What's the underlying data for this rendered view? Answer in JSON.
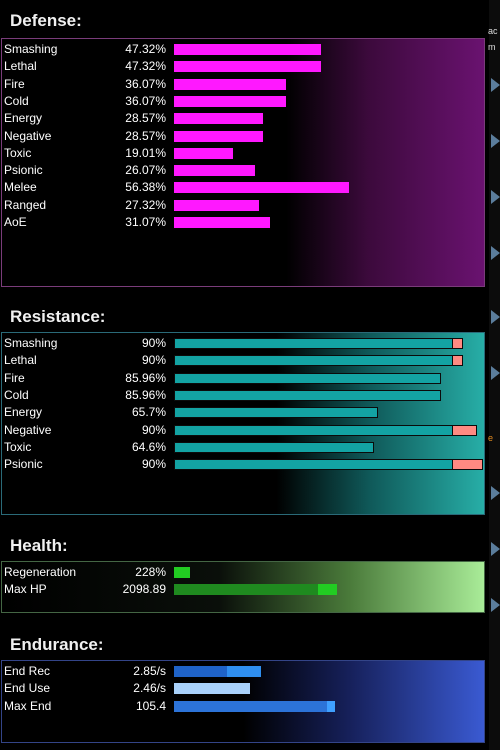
{
  "sections": {
    "defense": {
      "title": "Defense:"
    },
    "resistance": {
      "title": "Resistance:"
    },
    "health": {
      "title": "Health:"
    },
    "endurance": {
      "title": "Endurance:"
    }
  },
  "defense": [
    {
      "label": "Smashing",
      "value": "47.32%",
      "fill": 0.473
    },
    {
      "label": "Lethal",
      "value": "47.32%",
      "fill": 0.473
    },
    {
      "label": "Fire",
      "value": "36.07%",
      "fill": 0.361
    },
    {
      "label": "Cold",
      "value": "36.07%",
      "fill": 0.361
    },
    {
      "label": "Energy",
      "value": "28.57%",
      "fill": 0.286
    },
    {
      "label": "Negative",
      "value": "28.57%",
      "fill": 0.286
    },
    {
      "label": "Toxic",
      "value": "19.01%",
      "fill": 0.19
    },
    {
      "label": "Psionic",
      "value": "26.07%",
      "fill": 0.261
    },
    {
      "label": "Melee",
      "value": "56.38%",
      "fill": 0.564
    },
    {
      "label": "Ranged",
      "value": "27.32%",
      "fill": 0.273
    },
    {
      "label": "AoE",
      "value": "31.07%",
      "fill": 0.311
    }
  ],
  "resistance": [
    {
      "label": "Smashing",
      "value": "90%",
      "fill": 0.9,
      "overcap": 0.035
    },
    {
      "label": "Lethal",
      "value": "90%",
      "fill": 0.9,
      "overcap": 0.035
    },
    {
      "label": "Fire",
      "value": "85.96%",
      "fill": 0.86,
      "overcap": 0
    },
    {
      "label": "Cold",
      "value": "85.96%",
      "fill": 0.86,
      "overcap": 0
    },
    {
      "label": "Energy",
      "value": "65.7%",
      "fill": 0.657,
      "overcap": 0
    },
    {
      "label": "Negative",
      "value": "90%",
      "fill": 0.9,
      "overcap": 0.08
    },
    {
      "label": "Toxic",
      "value": "64.6%",
      "fill": 0.646,
      "overcap": 0
    },
    {
      "label": "Psionic",
      "value": "90%",
      "fill": 0.9,
      "overcap": 0.1
    }
  ],
  "health": [
    {
      "label": "Regeneration",
      "value": "228%",
      "fill": 0.052,
      "fill2": 0,
      "color": "#22cc22",
      "color2": "#22cc22"
    },
    {
      "label": "Max HP",
      "value": "2098.89",
      "fill": 0.465,
      "fill2": 0.06,
      "color": "#1f8a1f",
      "color2": "#22cc22"
    }
  ],
  "endurance": [
    {
      "label": "End Rec",
      "value": "2.85/s",
      "fill": 0.17,
      "fill2": 0.11,
      "color": "#1f63c8",
      "color2": "#2f8ff0"
    },
    {
      "label": "End Use",
      "value": "2.46/s",
      "fill": 0.245,
      "fill2": 0,
      "color": "#a9d1fa",
      "color2": "#a9d1fa"
    },
    {
      "label": "Max End",
      "value": "105.4",
      "fill": 0.495,
      "fill2": 0.025,
      "color": "#2c73d8",
      "color2": "#3fa0ff"
    }
  ],
  "side": {
    "text1": "ac",
    "text2": "m",
    "text3": "e"
  }
}
